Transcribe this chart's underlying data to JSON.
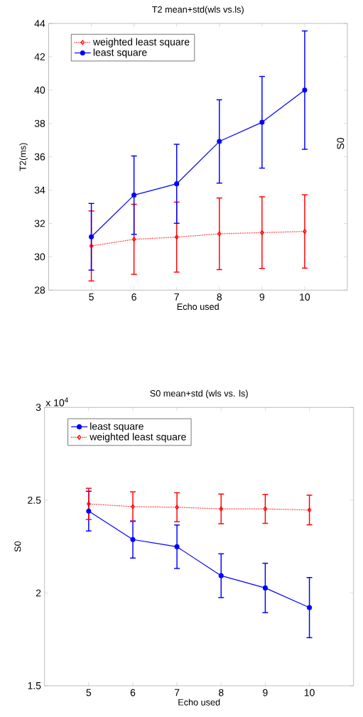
{
  "chart_data": [
    {
      "type": "line",
      "title": "T2 mean+std(wls vs.ls)",
      "xlabel": "Echo used",
      "ylabel": "T2(ms)",
      "x": [
        5,
        6,
        7,
        8,
        9,
        10
      ],
      "xlim": [
        4,
        11
      ],
      "xticks": [
        5,
        6,
        7,
        8,
        9,
        10
      ],
      "ylim": [
        28,
        44
      ],
      "yticks": [
        28,
        30,
        32,
        34,
        36,
        38,
        40,
        42,
        44
      ],
      "legend": "top left",
      "annotations": [
        "S0"
      ],
      "series": [
        {
          "name": "weighted least square",
          "color": "#ff0000",
          "marker": "diamond",
          "line_style": "dotted",
          "values": [
            30.65,
            31.05,
            31.18,
            31.38,
            31.45,
            31.52
          ],
          "errors": [
            2.1,
            2.1,
            2.1,
            2.15,
            2.15,
            2.2
          ]
        },
        {
          "name": "least square",
          "color": "#0000ff",
          "marker": "circle",
          "line_style": "solid",
          "values": [
            31.2,
            33.7,
            34.38,
            36.92,
            38.07,
            40.0
          ],
          "errors": [
            2.0,
            2.35,
            2.37,
            2.5,
            2.75,
            3.55
          ]
        }
      ]
    },
    {
      "type": "line",
      "title": "S0 mean+std (wls vs. ls)",
      "xlabel": "Echo used",
      "ylabel": "S0",
      "x": [
        5,
        6,
        7,
        8,
        9,
        10
      ],
      "xlim": [
        4,
        11
      ],
      "xticks": [
        5,
        6,
        7,
        8,
        9,
        10
      ],
      "ylim": [
        1.5,
        3
      ],
      "yticks": [
        1.5,
        2,
        2.5,
        3
      ],
      "legend": "top left",
      "annotations": [
        "x 10$^{4}$"
      ],
      "series": [
        {
          "name": "least square",
          "color": "#0000ff",
          "marker": "circle",
          "line_style": "solid",
          "values": [
            2.441,
            2.288,
            2.249,
            2.093,
            2.027,
            1.921
          ],
          "errors": [
            0.107,
            0.1,
            0.117,
            0.118,
            0.133,
            0.162
          ]
        },
        {
          "name": "weighted least square",
          "color": "#ff0000",
          "marker": "diamond",
          "line_style": "dotted",
          "values": [
            2.48,
            2.465,
            2.462,
            2.453,
            2.453,
            2.447
          ],
          "errors": [
            0.084,
            0.08,
            0.078,
            0.08,
            0.078,
            0.08
          ]
        }
      ]
    }
  ]
}
